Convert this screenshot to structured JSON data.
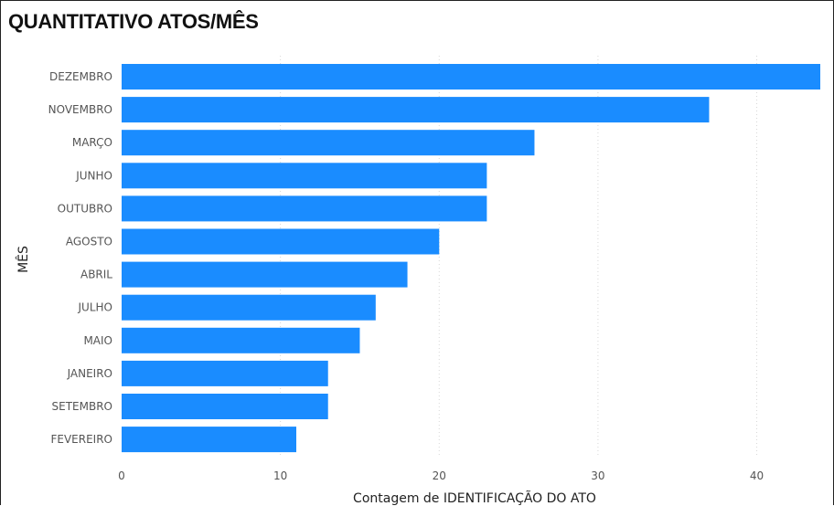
{
  "chart_data": {
    "type": "bar",
    "orientation": "horizontal",
    "title": "QUANTITATIVO ATOS/MÊS",
    "xlabel": "Contagem de IDENTIFICAÇÃO DO ATO",
    "ylabel": "MÊS",
    "categories": [
      "DEZEMBRO",
      "NOVEMBRO",
      "MARÇO",
      "JUNHO",
      "OUTUBRO",
      "AGOSTO",
      "ABRIL",
      "JULHO",
      "MAIO",
      "JANEIRO",
      "SETEMBRO",
      "FEVEREIRO"
    ],
    "values": [
      44,
      37,
      26,
      23,
      23,
      20,
      18,
      16,
      15,
      13,
      13,
      11
    ],
    "xlim": [
      0,
      44
    ],
    "xticks": [
      "0",
      "10",
      "20",
      "30",
      "40"
    ],
    "grid": true,
    "bar_color": "#1a8cff"
  }
}
